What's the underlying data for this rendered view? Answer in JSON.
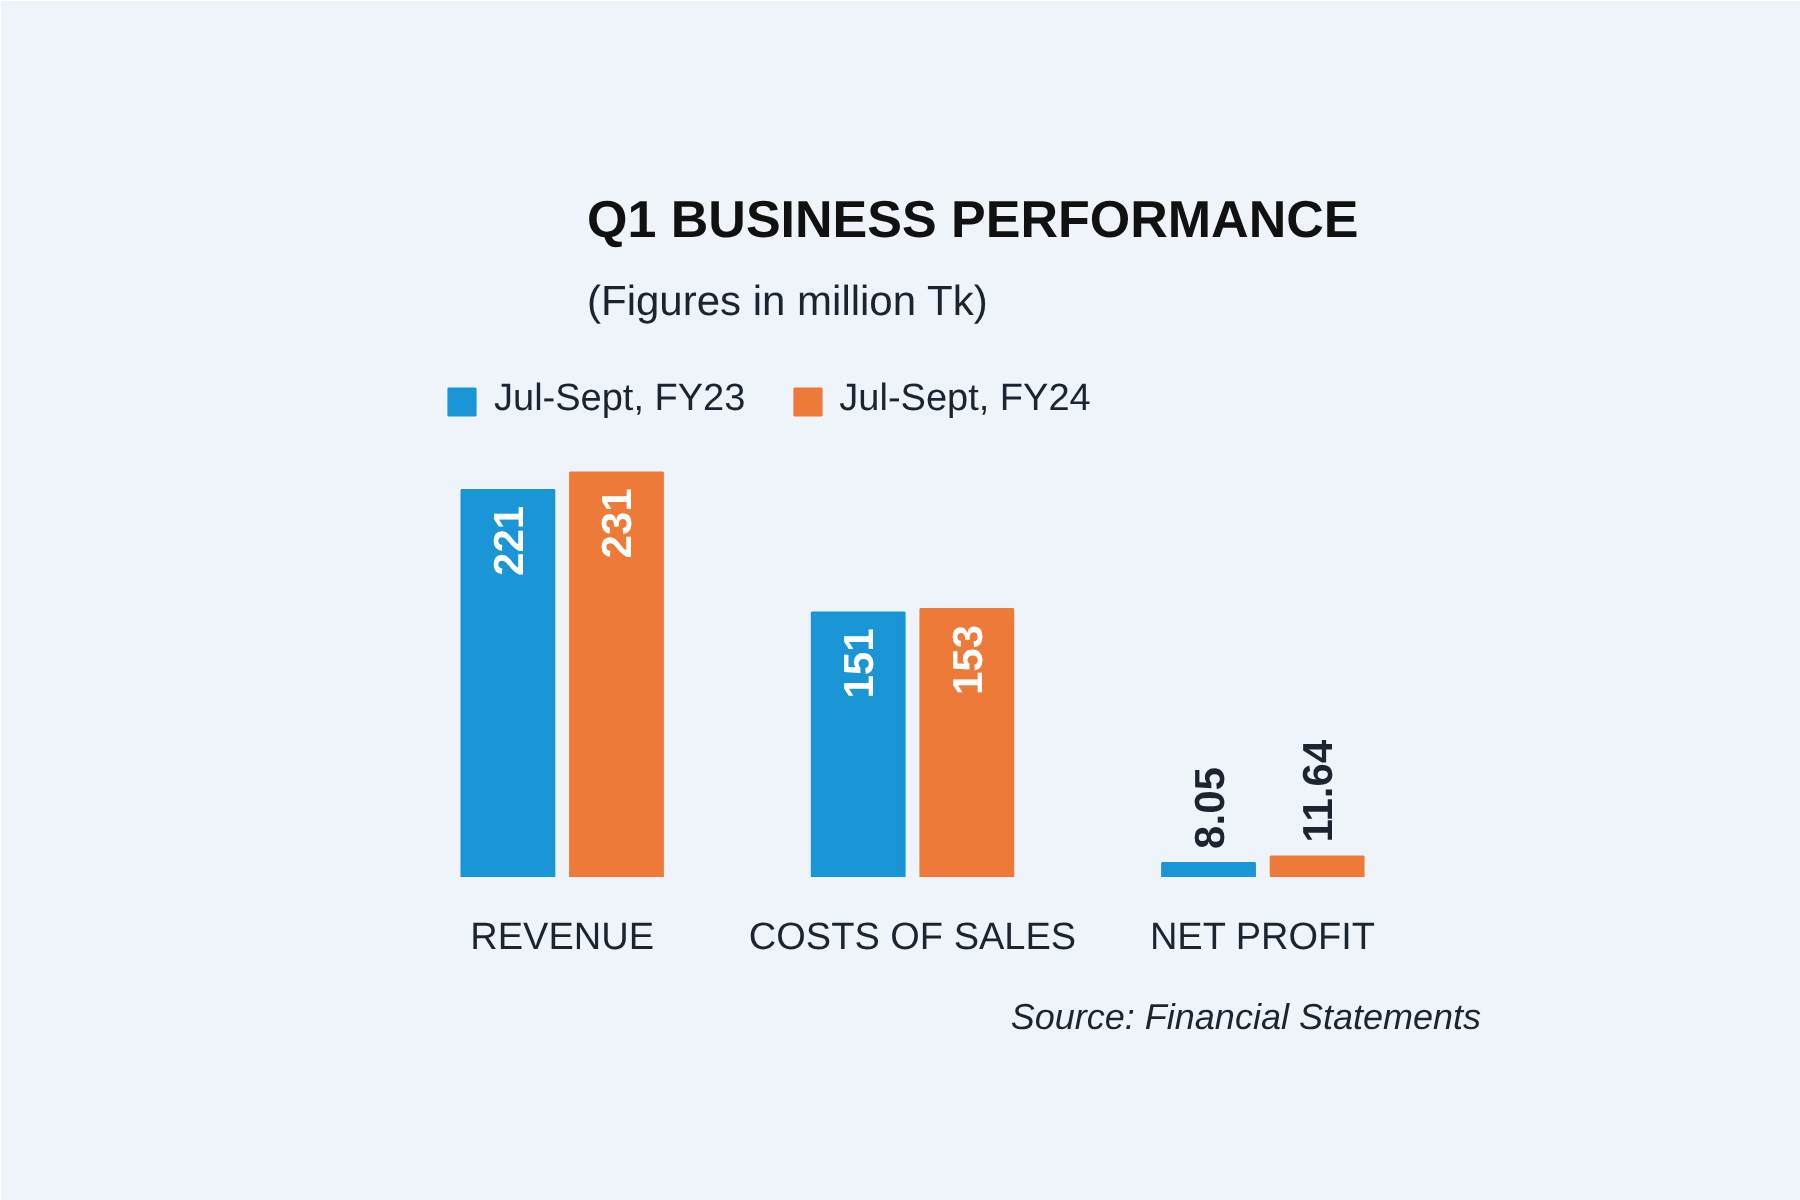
{
  "chart_data": {
    "type": "bar",
    "title": "Q1 BUSINESS PERFORMANCE",
    "subtitle": "(Figures in million Tk)",
    "categories": [
      "REVENUE",
      "COSTS OF SALES",
      "NET PROFIT"
    ],
    "series": [
      {
        "name": "Jul-Sept, FY23",
        "color": "#1a96d6",
        "values": [
          221,
          151,
          8.05
        ]
      },
      {
        "name": "Jul-Sept, FY24",
        "color": "#ee7a3a",
        "values": [
          231,
          153,
          11.64
        ]
      }
    ],
    "data_labels": true,
    "legend": "top left",
    "grid": false,
    "annotations": [
      "Source: Financial Statements"
    ]
  }
}
